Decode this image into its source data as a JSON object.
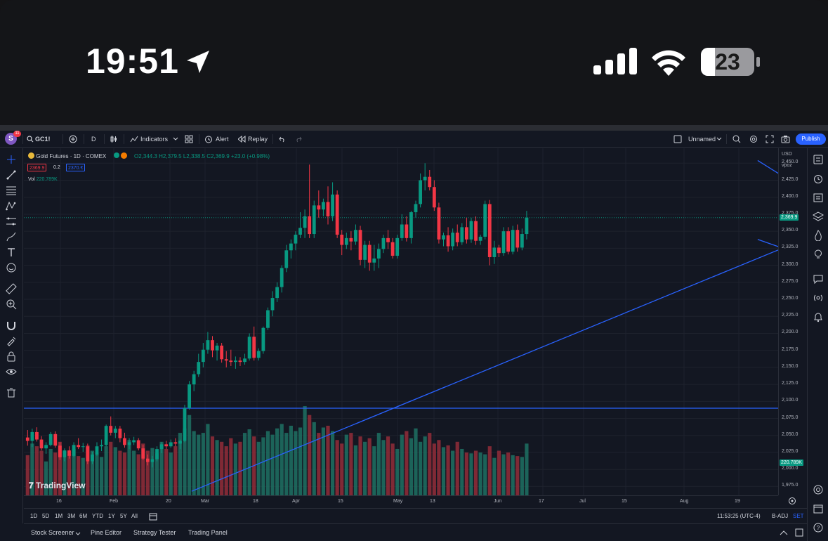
{
  "status_bar": {
    "time": "19:51",
    "battery": "23",
    "icons": [
      "location-arrow-icon",
      "cellular-signal-icon",
      "wifi-icon",
      "battery-icon"
    ]
  },
  "toolbar": {
    "avatar_letter": "S",
    "notification_count": "11",
    "symbol": "GC1!",
    "interval": "D",
    "indicators_label": "Indicators",
    "alert_label": "Alert",
    "replay_label": "Replay",
    "layout_name": "Unnamed",
    "publish_label": "Publish"
  },
  "legend": {
    "title": "Gold Futures · 1D · COMEX",
    "open": "O2,344.3",
    "high": "H2,379.5",
    "low": "L2,338.5",
    "close": "C2,369.9",
    "change": "+23.0 (+0.98%)",
    "bid": "2369.9",
    "spread": "0.2",
    "ask": "2370.€",
    "vol_label": "Vol",
    "vol_value": "220.789K"
  },
  "price_axis": {
    "currency": "USD",
    "unit": "vpoz",
    "ticks": [
      "2,450.0",
      "2,425.0",
      "2,400.0",
      "2,375.0",
      "2,350.0",
      "2,325.0",
      "2,300.0",
      "2,275.0",
      "2,250.0",
      "2,225.0",
      "2,200.0",
      "2,175.0",
      "2,150.0",
      "2,125.0",
      "2,100.0",
      "2,075.0",
      "2,050.0",
      "2,025.0",
      "2,000.0",
      "1,975.0"
    ],
    "last_price_tag": "2,369.9",
    "volume_tag": "220.789K"
  },
  "time_axis": {
    "labels": [
      "16",
      "Feb",
      "20",
      "Mar",
      "18",
      "Apr",
      "15",
      "May",
      "13",
      "Jun",
      "17",
      "Jul",
      "15",
      "Aug",
      "19"
    ]
  },
  "range_bar": {
    "ranges": [
      "1D",
      "5D",
      "1M",
      "3M",
      "6M",
      "YTD",
      "1Y",
      "5Y",
      "All"
    ],
    "clock": "11:53:25 (UTC-4)",
    "adj": "B-ADJ",
    "session": "SET"
  },
  "bottom_tabs": [
    "Stock Screener",
    "Pine Editor",
    "Strategy Tester",
    "Trading Panel"
  ],
  "watermark": "TradingView",
  "colors": {
    "up": "#089981",
    "down": "#f23645",
    "drawing": "#2962ff",
    "background": "#131722"
  },
  "chart_data": {
    "type": "candlestick",
    "symbol": "GC1!",
    "ylim": [
      1962,
      2472
    ],
    "horizontal_line": 2090,
    "candles": [
      {
        "o": 2047,
        "h": 2058,
        "l": 2035,
        "c": 2042
      },
      {
        "o": 2042,
        "h": 2060,
        "l": 2033,
        "c": 2055
      },
      {
        "o": 2055,
        "h": 2062,
        "l": 2041,
        "c": 2044
      },
      {
        "o": 2044,
        "h": 2049,
        "l": 2028,
        "c": 2031
      },
      {
        "o": 2031,
        "h": 2040,
        "l": 2023,
        "c": 2036
      },
      {
        "o": 2036,
        "h": 2055,
        "l": 2034,
        "c": 2052
      },
      {
        "o": 2052,
        "h": 2056,
        "l": 2032,
        "c": 2035
      },
      {
        "o": 2035,
        "h": 2040,
        "l": 2014,
        "c": 2018
      },
      {
        "o": 2018,
        "h": 2031,
        "l": 2012,
        "c": 2028
      },
      {
        "o": 2028,
        "h": 2034,
        "l": 2016,
        "c": 2020
      },
      {
        "o": 2020,
        "h": 2040,
        "l": 2018,
        "c": 2036
      },
      {
        "o": 2036,
        "h": 2046,
        "l": 2030,
        "c": 2033
      },
      {
        "o": 2033,
        "h": 2039,
        "l": 2026,
        "c": 2034
      },
      {
        "o": 2034,
        "h": 2038,
        "l": 2008,
        "c": 2012
      },
      {
        "o": 2012,
        "h": 2026,
        "l": 2008,
        "c": 2022
      },
      {
        "o": 2022,
        "h": 2040,
        "l": 2020,
        "c": 2034
      },
      {
        "o": 2034,
        "h": 2044,
        "l": 2027,
        "c": 2036
      },
      {
        "o": 2036,
        "h": 2066,
        "l": 2034,
        "c": 2064
      },
      {
        "o": 2064,
        "h": 2078,
        "l": 2050,
        "c": 2054
      },
      {
        "o": 2054,
        "h": 2064,
        "l": 2046,
        "c": 2060
      },
      {
        "o": 2060,
        "h": 2064,
        "l": 2040,
        "c": 2046
      },
      {
        "o": 2046,
        "h": 2054,
        "l": 2032,
        "c": 2036
      },
      {
        "o": 2036,
        "h": 2046,
        "l": 2030,
        "c": 2040
      },
      {
        "o": 2040,
        "h": 2048,
        "l": 2036,
        "c": 2043
      },
      {
        "o": 2043,
        "h": 2046,
        "l": 2028,
        "c": 2031
      },
      {
        "o": 2031,
        "h": 2036,
        "l": 2014,
        "c": 2016
      },
      {
        "o": 2016,
        "h": 2022,
        "l": 2006,
        "c": 2011
      },
      {
        "o": 2011,
        "h": 2020,
        "l": 2003,
        "c": 2015
      },
      {
        "o": 2015,
        "h": 2034,
        "l": 2012,
        "c": 2030
      },
      {
        "o": 2030,
        "h": 2040,
        "l": 2024,
        "c": 2037
      },
      {
        "o": 2037,
        "h": 2042,
        "l": 2030,
        "c": 2034
      },
      {
        "o": 2034,
        "h": 2044,
        "l": 2032,
        "c": 2040
      },
      {
        "o": 2040,
        "h": 2046,
        "l": 2034,
        "c": 2038
      },
      {
        "o": 2038,
        "h": 2044,
        "l": 2030,
        "c": 2042
      },
      {
        "o": 2042,
        "h": 2095,
        "l": 2040,
        "c": 2090
      },
      {
        "o": 2090,
        "h": 2130,
        "l": 2088,
        "c": 2125
      },
      {
        "o": 2125,
        "h": 2145,
        "l": 2115,
        "c": 2140
      },
      {
        "o": 2140,
        "h": 2170,
        "l": 2136,
        "c": 2158
      },
      {
        "o": 2158,
        "h": 2186,
        "l": 2150,
        "c": 2176
      },
      {
        "o": 2176,
        "h": 2202,
        "l": 2170,
        "c": 2190
      },
      {
        "o": 2190,
        "h": 2196,
        "l": 2165,
        "c": 2175
      },
      {
        "o": 2175,
        "h": 2186,
        "l": 2160,
        "c": 2182
      },
      {
        "o": 2182,
        "h": 2186,
        "l": 2157,
        "c": 2162
      },
      {
        "o": 2162,
        "h": 2174,
        "l": 2150,
        "c": 2160
      },
      {
        "o": 2160,
        "h": 2176,
        "l": 2152,
        "c": 2158
      },
      {
        "o": 2158,
        "h": 2166,
        "l": 2148,
        "c": 2160
      },
      {
        "o": 2160,
        "h": 2165,
        "l": 2152,
        "c": 2158
      },
      {
        "o": 2158,
        "h": 2170,
        "l": 2154,
        "c": 2163
      },
      {
        "o": 2163,
        "h": 2200,
        "l": 2160,
        "c": 2195
      },
      {
        "o": 2195,
        "h": 2210,
        "l": 2160,
        "c": 2164
      },
      {
        "o": 2164,
        "h": 2178,
        "l": 2160,
        "c": 2174
      },
      {
        "o": 2174,
        "h": 2210,
        "l": 2170,
        "c": 2208
      },
      {
        "o": 2208,
        "h": 2238,
        "l": 2205,
        "c": 2234
      },
      {
        "o": 2234,
        "h": 2262,
        "l": 2225,
        "c": 2252
      },
      {
        "o": 2252,
        "h": 2275,
        "l": 2246,
        "c": 2268
      },
      {
        "o": 2268,
        "h": 2300,
        "l": 2260,
        "c": 2296
      },
      {
        "o": 2296,
        "h": 2330,
        "l": 2290,
        "c": 2322
      },
      {
        "o": 2322,
        "h": 2338,
        "l": 2310,
        "c": 2332
      },
      {
        "o": 2332,
        "h": 2350,
        "l": 2322,
        "c": 2345
      },
      {
        "o": 2345,
        "h": 2378,
        "l": 2340,
        "c": 2355
      },
      {
        "o": 2355,
        "h": 2382,
        "l": 2340,
        "c": 2372
      },
      {
        "o": 2372,
        "h": 2448,
        "l": 2340,
        "c": 2346
      },
      {
        "o": 2346,
        "h": 2395,
        "l": 2340,
        "c": 2388
      },
      {
        "o": 2388,
        "h": 2410,
        "l": 2370,
        "c": 2382
      },
      {
        "o": 2382,
        "h": 2398,
        "l": 2372,
        "c": 2393
      },
      {
        "o": 2393,
        "h": 2416,
        "l": 2360,
        "c": 2372
      },
      {
        "o": 2372,
        "h": 2422,
        "l": 2365,
        "c": 2404
      },
      {
        "o": 2404,
        "h": 2410,
        "l": 2340,
        "c": 2345
      },
      {
        "o": 2345,
        "h": 2352,
        "l": 2315,
        "c": 2330
      },
      {
        "o": 2330,
        "h": 2348,
        "l": 2324,
        "c": 2340
      },
      {
        "o": 2340,
        "h": 2350,
        "l": 2322,
        "c": 2335
      },
      {
        "o": 2335,
        "h": 2360,
        "l": 2330,
        "c": 2352
      },
      {
        "o": 2352,
        "h": 2358,
        "l": 2300,
        "c": 2308
      },
      {
        "o": 2308,
        "h": 2336,
        "l": 2296,
        "c": 2330
      },
      {
        "o": 2330,
        "h": 2336,
        "l": 2292,
        "c": 2304
      },
      {
        "o": 2304,
        "h": 2330,
        "l": 2292,
        "c": 2310
      },
      {
        "o": 2310,
        "h": 2332,
        "l": 2296,
        "c": 2324
      },
      {
        "o": 2324,
        "h": 2345,
        "l": 2318,
        "c": 2340
      },
      {
        "o": 2340,
        "h": 2352,
        "l": 2324,
        "c": 2334
      },
      {
        "o": 2334,
        "h": 2340,
        "l": 2310,
        "c": 2314
      },
      {
        "o": 2314,
        "h": 2345,
        "l": 2310,
        "c": 2340
      },
      {
        "o": 2340,
        "h": 2375,
        "l": 2336,
        "c": 2360
      },
      {
        "o": 2360,
        "h": 2372,
        "l": 2335,
        "c": 2340
      },
      {
        "o": 2340,
        "h": 2380,
        "l": 2332,
        "c": 2378
      },
      {
        "o": 2378,
        "h": 2395,
        "l": 2370,
        "c": 2390
      },
      {
        "o": 2390,
        "h": 2435,
        "l": 2385,
        "c": 2425
      },
      {
        "o": 2425,
        "h": 2450,
        "l": 2410,
        "c": 2430
      },
      {
        "o": 2430,
        "h": 2440,
        "l": 2410,
        "c": 2415
      },
      {
        "o": 2415,
        "h": 2425,
        "l": 2380,
        "c": 2385
      },
      {
        "o": 2385,
        "h": 2392,
        "l": 2332,
        "c": 2338
      },
      {
        "o": 2338,
        "h": 2348,
        "l": 2328,
        "c": 2344
      },
      {
        "o": 2344,
        "h": 2356,
        "l": 2320,
        "c": 2328
      },
      {
        "o": 2328,
        "h": 2354,
        "l": 2322,
        "c": 2348
      },
      {
        "o": 2348,
        "h": 2360,
        "l": 2328,
        "c": 2334
      },
      {
        "o": 2334,
        "h": 2362,
        "l": 2330,
        "c": 2356
      },
      {
        "o": 2356,
        "h": 2370,
        "l": 2332,
        "c": 2338
      },
      {
        "o": 2338,
        "h": 2370,
        "l": 2333,
        "c": 2365
      },
      {
        "o": 2365,
        "h": 2372,
        "l": 2330,
        "c": 2336
      },
      {
        "o": 2336,
        "h": 2345,
        "l": 2330,
        "c": 2342
      },
      {
        "o": 2342,
        "h": 2395,
        "l": 2338,
        "c": 2390
      },
      {
        "o": 2390,
        "h": 2396,
        "l": 2300,
        "c": 2312
      },
      {
        "o": 2312,
        "h": 2336,
        "l": 2302,
        "c": 2326
      },
      {
        "o": 2326,
        "h": 2330,
        "l": 2312,
        "c": 2318
      },
      {
        "o": 2318,
        "h": 2356,
        "l": 2314,
        "c": 2350
      },
      {
        "o": 2350,
        "h": 2356,
        "l": 2316,
        "c": 2320
      },
      {
        "o": 2320,
        "h": 2358,
        "l": 2316,
        "c": 2352
      },
      {
        "o": 2352,
        "h": 2360,
        "l": 2320,
        "c": 2326
      },
      {
        "o": 2326,
        "h": 2354,
        "l": 2322,
        "c": 2346
      },
      {
        "o": 2346,
        "h": 2380,
        "l": 2338,
        "c": 2370
      }
    ],
    "volume_relative": [
      0.45,
      0.58,
      0.55,
      0.5,
      0.38,
      0.52,
      0.48,
      0.6,
      0.5,
      0.46,
      0.52,
      0.44,
      0.42,
      0.56,
      0.5,
      0.47,
      0.43,
      0.55,
      0.6,
      0.54,
      0.5,
      0.48,
      0.62,
      0.5,
      0.46,
      0.58,
      0.5,
      0.53,
      0.47,
      0.6,
      0.52,
      0.48,
      0.55,
      0.7,
      0.75,
      0.9,
      0.72,
      0.68,
      0.7,
      0.8,
      0.66,
      0.62,
      0.6,
      0.55,
      0.64,
      0.58,
      0.6,
      0.7,
      0.74,
      0.66,
      0.6,
      0.65,
      0.72,
      0.68,
      0.75,
      0.8,
      0.7,
      0.78,
      0.72,
      0.76,
      1.0,
      0.9,
      0.82,
      0.7,
      0.76,
      0.78,
      0.72,
      0.62,
      0.58,
      0.68,
      0.7,
      0.56,
      0.66,
      0.6,
      0.64,
      0.55,
      0.7,
      0.62,
      0.66,
      0.58,
      0.52,
      0.68,
      0.72,
      0.64,
      0.75,
      0.6,
      0.66,
      0.7,
      0.58,
      0.62,
      0.54,
      0.56,
      0.5,
      0.6,
      0.52,
      0.48,
      0.47,
      0.5,
      0.48,
      0.46,
      0.55,
      0.42,
      0.5,
      0.46,
      0.48,
      0.45,
      0.44,
      0.43,
      0.58
    ],
    "trendlines": [
      {
        "from": {
          "bar": 35.5,
          "price": 1968
        },
        "to": {
          "bar": 183,
          "price": 2380
        }
      },
      {
        "from": {
          "bar": 158,
          "price": 2454
        },
        "to": {
          "bar": 182,
          "price": 2352
        }
      },
      {
        "from": {
          "bar": 158,
          "price": 2338
        },
        "to": {
          "bar": 174,
          "price": 2300
        }
      }
    ]
  }
}
